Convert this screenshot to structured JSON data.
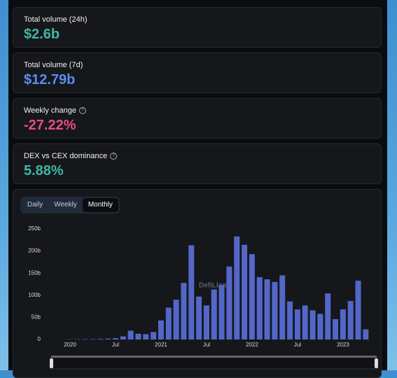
{
  "cards": [
    {
      "label": "Total volume (24h)",
      "value": "$2.6b",
      "color": "#3fb7a4"
    },
    {
      "label": "Total volume (7d)",
      "value": "$12.79b",
      "color": "#5b8def"
    },
    {
      "label": "Weekly change",
      "value": "-27.22%",
      "color": "#ec4a85"
    },
    {
      "label": "DEX vs CEX dominance",
      "value": "5.88%",
      "color": "#3fb7a4"
    }
  ],
  "tabs": [
    "Daily",
    "Weekly",
    "Monthly"
  ],
  "watermark": "DefiLlama",
  "chart_data": {
    "type": "bar",
    "color": "#5467c8",
    "categories": [
      "2020",
      null,
      null,
      null,
      null,
      null,
      "Jul",
      null,
      null,
      null,
      null,
      null,
      "2021",
      null,
      null,
      null,
      null,
      null,
      "Jul",
      null,
      null,
      null,
      null,
      null,
      "2022",
      null,
      null,
      null,
      null,
      null,
      "Jul",
      null,
      null,
      null,
      null,
      null,
      "2023",
      null,
      null,
      null
    ],
    "values": [
      0.5,
      0.7,
      1,
      1,
      1.5,
      2,
      3,
      7,
      20,
      13,
      12,
      17,
      43,
      72,
      90,
      128,
      213,
      97,
      77,
      113,
      123,
      165,
      233,
      214,
      193,
      141,
      136,
      130,
      145,
      86,
      68,
      77,
      66,
      58,
      104,
      46,
      68,
      87,
      133,
      23
    ],
    "ylim": [
      0,
      250
    ],
    "yticks": [
      0,
      {
        "value": 50,
        "label": "50b"
      },
      {
        "value": 100,
        "label": "100b"
      },
      {
        "value": 150,
        "label": "150b"
      },
      {
        "value": 200,
        "label": "200b"
      },
      {
        "value": 250,
        "label": "250b"
      }
    ]
  }
}
